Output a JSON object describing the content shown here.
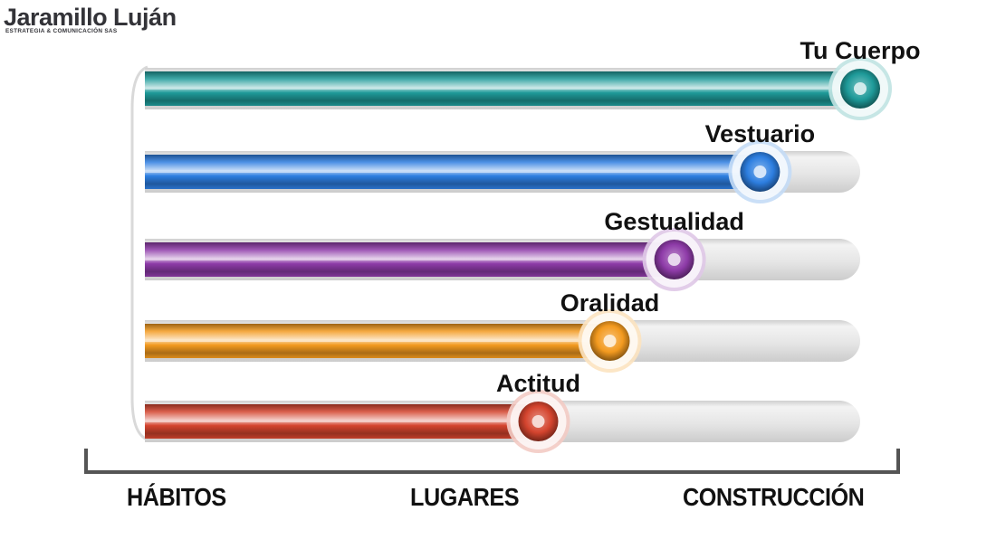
{
  "logo": {
    "name": "Jaramillo Luján",
    "tagline": "ESTRATEGIA & COMUNICACIÓN SAS"
  },
  "chart_data": {
    "type": "bar",
    "orientation": "horizontal",
    "title": "",
    "xlabel": "",
    "ylabel": "",
    "xlim": [
      0,
      100
    ],
    "grid": false,
    "legend": "none",
    "categories": [
      "Tu Cuerpo",
      "Vestuario",
      "Gestualidad",
      "Oralidad",
      "Actitud"
    ],
    "values": [
      100,
      86,
      74,
      65,
      55
    ],
    "colors": [
      "#1e9a99",
      "#2d7ee0",
      "#8e3ba8",
      "#f39a1f",
      "#d4442e"
    ],
    "axis_labels": [
      "HÁBITOS",
      "LUGARES",
      "CONSTRUCCIÓN"
    ]
  }
}
